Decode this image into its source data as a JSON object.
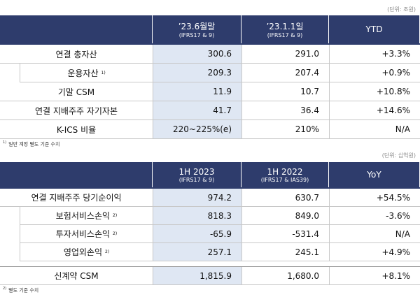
{
  "table1": {
    "unit": "(단위: 조원)",
    "columns": [
      {
        "title": "’23.6월말",
        "subtitle": "(IFRS17 & 9)"
      },
      {
        "title": "’23.1.1일",
        "subtitle": "(IFRS17 & 9)"
      },
      {
        "title": "YTD"
      }
    ],
    "rows": [
      {
        "label": "연결 총자산",
        "cells": [
          "300.6",
          "291.0",
          "+3.3%"
        ]
      },
      {
        "label": "운용자산",
        "note": "1)",
        "cells": [
          "209.3",
          "207.4",
          "+0.9%"
        ]
      },
      {
        "label": "기말 CSM",
        "cells": [
          "11.9",
          "10.7",
          "+10.8%"
        ]
      },
      {
        "label": "연결 지배주주 자기자본",
        "cells": [
          "41.7",
          "36.4",
          "+14.6%"
        ]
      },
      {
        "label": "K-ICS 비율",
        "cells": [
          "220~225%(e)",
          "210%",
          "N/A"
        ]
      }
    ],
    "footnote": {
      "marker": "1)",
      "text": "일반 계정 별도 기준 수치"
    }
  },
  "table2": {
    "unit": "(단위: 십억원)",
    "columns": [
      {
        "title": "1H 2023",
        "subtitle": "(IFRS17 & 9)"
      },
      {
        "title": "1H 2022",
        "subtitle": "(IFRS17 & IAS39)"
      },
      {
        "title": "YoY"
      }
    ],
    "rows": [
      {
        "label": "연결 지배주주 당기순이익",
        "cells": [
          "974.2",
          "630.7",
          "+54.5%"
        ]
      },
      {
        "label": "보험서비스손익",
        "note": "2)",
        "cells": [
          "818.3",
          "849.0",
          "-3.6%"
        ]
      },
      {
        "label": "투자서비스손익",
        "note": "2)",
        "cells": [
          "-65.9",
          "-531.4",
          "N/A"
        ]
      },
      {
        "label": "영업외손익",
        "note": "2)",
        "cells": [
          "257.1",
          "245.1",
          "+4.9%"
        ]
      }
    ],
    "summary_rows": [
      {
        "label": "신계약 CSM",
        "cells": [
          "1,815.9",
          "1,680.0",
          "+8.1%"
        ]
      }
    ],
    "footnote": {
      "marker": "2)",
      "text": "별도 기준 수치"
    }
  }
}
